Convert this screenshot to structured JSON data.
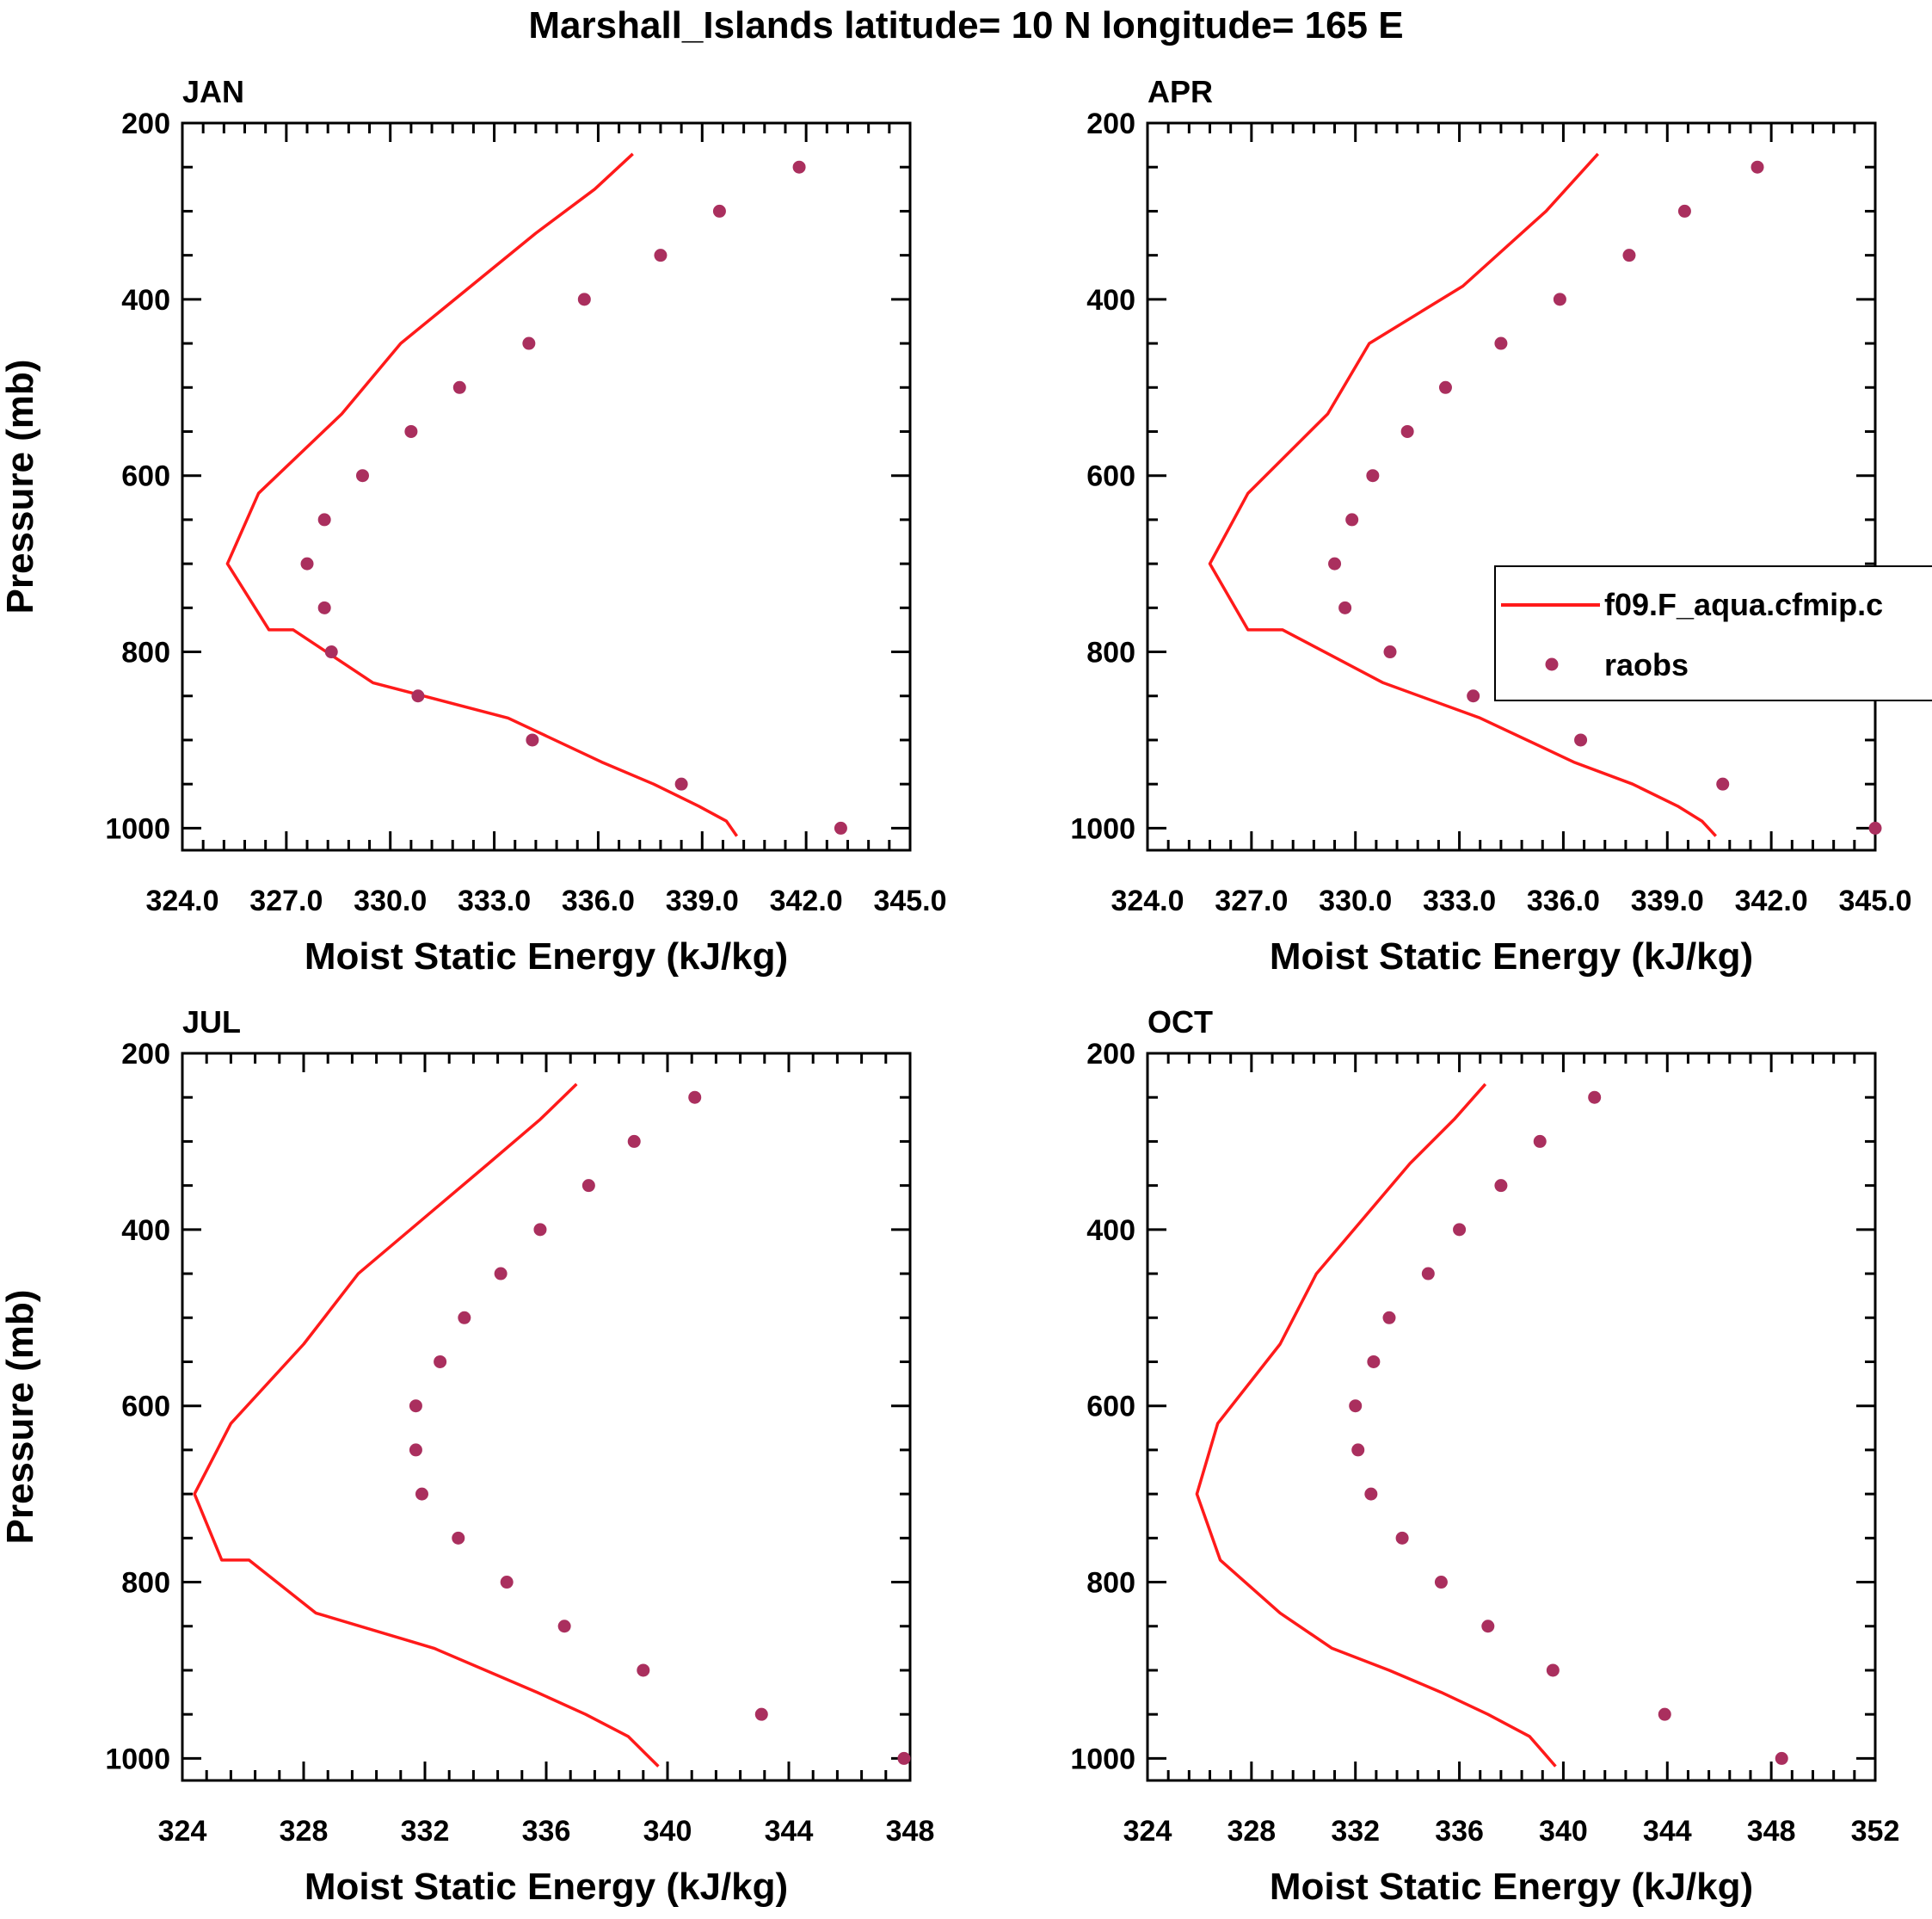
{
  "title": "Marshall_Islands  latitude= 10 N longitude= 165 E",
  "legend": {
    "model_label": "f09.F_aqua.cfmip.c",
    "obs_label": "raobs"
  },
  "colors": {
    "model": "#ff1a1a",
    "obs": "#aa2f5e",
    "axis": "#000000"
  },
  "chart_data": [
    {
      "type": "line",
      "panel_title": "JAN",
      "xlabel": "Moist Static Energy (kJ/kg)",
      "ylabel": "Pressure (mb)",
      "xlim": [
        324,
        345
      ],
      "ylim": [
        200,
        1025
      ],
      "xticks": [
        324,
        327,
        330,
        333,
        336,
        339,
        342,
        345
      ],
      "xtick_labels": [
        "324.0",
        "327.0",
        "330.0",
        "333.0",
        "336.0",
        "339.0",
        "342.0",
        "345.0"
      ],
      "yticks": [
        200,
        400,
        600,
        800,
        1000
      ],
      "ytick_labels": [
        "200",
        "400",
        "600",
        "800",
        "1000"
      ],
      "series": [
        {
          "name": "f09.F_aqua.cfmip.c",
          "style": "line",
          "x": [
            340.0,
            339.7,
            338.9,
            337.6,
            336.1,
            333.4,
            329.5,
            327.2,
            326.5,
            325.3,
            326.2,
            328.6,
            330.3,
            334.2,
            335.9,
            337.0
          ],
          "y": [
            1009,
            992,
            975,
            950,
            925,
            875,
            835,
            775,
            775,
            700,
            620,
            530,
            450,
            325,
            275,
            235
          ]
        },
        {
          "name": "raobs",
          "style": "marker",
          "x": [
            343.0,
            338.4,
            334.1,
            330.8,
            328.3,
            328.1,
            327.6,
            328.1,
            329.2,
            330.6,
            332.0,
            334.0,
            335.6,
            337.8,
            339.5,
            341.8
          ],
          "y": [
            1000,
            950,
            900,
            850,
            800,
            750,
            700,
            650,
            600,
            550,
            500,
            450,
            400,
            350,
            300,
            250
          ]
        }
      ]
    },
    {
      "type": "line",
      "panel_title": "APR",
      "xlabel": "Moist Static Energy (kJ/kg)",
      "ylabel": "",
      "xlim": [
        324,
        345
      ],
      "ylim": [
        200,
        1025
      ],
      "xticks": [
        324,
        327,
        330,
        333,
        336,
        339,
        342,
        345
      ],
      "xtick_labels": [
        "324.0",
        "327.0",
        "330.0",
        "333.0",
        "336.0",
        "339.0",
        "342.0",
        "345.0"
      ],
      "yticks": [
        200,
        400,
        600,
        800,
        1000
      ],
      "ytick_labels": [
        "200",
        "400",
        "600",
        "800",
        "1000"
      ],
      "series": [
        {
          "name": "f09.F_aqua.cfmip.c",
          "style": "line",
          "x": [
            340.4,
            340.0,
            339.3,
            338.0,
            336.3,
            333.6,
            330.8,
            327.9,
            326.9,
            325.8,
            326.9,
            329.2,
            330.4,
            333.1,
            335.5,
            337.0
          ],
          "y": [
            1009,
            992,
            975,
            950,
            925,
            875,
            835,
            775,
            775,
            700,
            620,
            530,
            450,
            385,
            300,
            235
          ]
        },
        {
          "name": "raobs",
          "style": "marker",
          "x": [
            345.0,
            340.6,
            336.5,
            333.4,
            331.0,
            329.7,
            329.4,
            329.9,
            330.5,
            331.5,
            332.6,
            334.2,
            335.9,
            337.9,
            339.5,
            341.6
          ],
          "y": [
            1000,
            950,
            900,
            850,
            800,
            750,
            700,
            650,
            600,
            550,
            500,
            450,
            400,
            350,
            300,
            250
          ]
        }
      ]
    },
    {
      "type": "line",
      "panel_title": "JUL",
      "xlabel": "Moist Static Energy (kJ/kg)",
      "ylabel": "Pressure (mb)",
      "xlim": [
        324,
        348
      ],
      "ylim": [
        200,
        1025
      ],
      "xticks": [
        324,
        328,
        332,
        336,
        340,
        344,
        348
      ],
      "xtick_labels": [
        "324",
        "328",
        "332",
        "336",
        "340",
        "344",
        "348"
      ],
      "yticks": [
        200,
        400,
        600,
        800,
        1000
      ],
      "ytick_labels": [
        "200",
        "400",
        "600",
        "800",
        "1000"
      ],
      "series": [
        {
          "name": "f09.F_aqua.cfmip.c",
          "style": "line",
          "x": [
            339.7,
            339.2,
            338.7,
            337.3,
            335.7,
            332.3,
            328.4,
            326.2,
            325.3,
            324.4,
            325.6,
            328.0,
            329.8,
            334.1,
            335.8,
            337.0
          ],
          "y": [
            1009,
            992,
            975,
            950,
            925,
            875,
            835,
            775,
            775,
            700,
            620,
            530,
            450,
            325,
            275,
            235
          ]
        },
        {
          "name": "raobs",
          "style": "marker",
          "x": [
            347.8,
            343.1,
            339.2,
            336.6,
            334.7,
            333.1,
            331.9,
            331.7,
            331.7,
            332.5,
            333.3,
            334.5,
            335.8,
            337.4,
            338.9,
            340.9
          ],
          "y": [
            1000,
            950,
            900,
            850,
            800,
            750,
            700,
            650,
            600,
            550,
            500,
            450,
            400,
            350,
            300,
            250
          ]
        }
      ]
    },
    {
      "type": "line",
      "panel_title": "OCT",
      "xlabel": "Moist Static Energy (kJ/kg)",
      "ylabel": "",
      "xlim": [
        324,
        352
      ],
      "ylim": [
        200,
        1025
      ],
      "xticks": [
        324,
        328,
        332,
        336,
        340,
        344,
        348,
        352
      ],
      "xtick_labels": [
        "324",
        "328",
        "332",
        "336",
        "340",
        "344",
        "348",
        "352"
      ],
      "yticks": [
        200,
        400,
        600,
        800,
        1000
      ],
      "ytick_labels": [
        "200",
        "400",
        "600",
        "800",
        "1000"
      ],
      "series": [
        {
          "name": "f09.F_aqua.cfmip.c",
          "style": "line",
          "x": [
            339.7,
            339.2,
            338.7,
            337.1,
            335.3,
            333.3,
            331.1,
            329.1,
            326.8,
            325.9,
            326.7,
            329.1,
            330.5,
            334.1,
            335.8,
            337.0
          ],
          "y": [
            1009,
            992,
            975,
            950,
            925,
            900,
            875,
            835,
            775,
            700,
            620,
            530,
            450,
            325,
            275,
            235
          ]
        },
        {
          "name": "raobs",
          "style": "marker",
          "x": [
            348.4,
            343.9,
            339.6,
            337.1,
            335.3,
            333.8,
            332.6,
            332.1,
            332.0,
            332.7,
            333.3,
            334.8,
            336.0,
            337.6,
            339.1,
            341.2
          ],
          "y": [
            1000,
            950,
            900,
            850,
            800,
            750,
            700,
            650,
            600,
            550,
            500,
            450,
            400,
            350,
            300,
            250
          ]
        }
      ]
    }
  ]
}
